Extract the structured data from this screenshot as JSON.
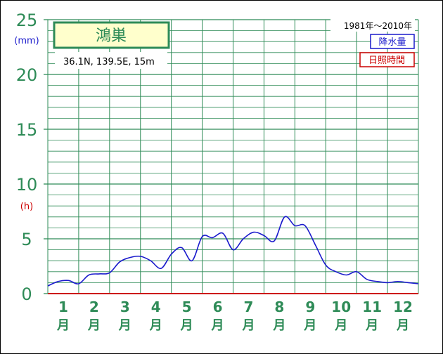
{
  "chart_data": {
    "type": "line",
    "station_name": "鴻巣",
    "station_info": "36.1N,  139.5E,  15m",
    "period": "1981年～2010年",
    "legend": [
      {
        "label": "降水量",
        "color": "#1a1acc"
      },
      {
        "label": "日照時間",
        "color": "#cc0000"
      }
    ],
    "y_unit_top": "(mm)",
    "y_unit_mid": "(h)",
    "y_ticks": [
      "0",
      "5",
      "10",
      "15",
      "20",
      "25"
    ],
    "ylim": [
      0,
      25
    ],
    "months": [
      {
        "num": "1",
        "kanji": "月"
      },
      {
        "num": "2",
        "kanji": "月"
      },
      {
        "num": "3",
        "kanji": "月"
      },
      {
        "num": "4",
        "kanji": "月"
      },
      {
        "num": "5",
        "kanji": "月"
      },
      {
        "num": "6",
        "kanji": "月"
      },
      {
        "num": "7",
        "kanji": "月"
      },
      {
        "num": "8",
        "kanji": "月"
      },
      {
        "num": "9",
        "kanji": "月"
      },
      {
        "num": "10",
        "kanji": "月"
      },
      {
        "num": "11",
        "kanji": "月"
      },
      {
        "num": "12",
        "kanji": "月"
      }
    ],
    "series": [
      {
        "name": "降水量",
        "color": "#1a1acc",
        "x": [
          0,
          0.33,
          0.67,
          1.0,
          1.33,
          1.67,
          2.0,
          2.33,
          2.67,
          3.0,
          3.33,
          3.67,
          4.0,
          4.33,
          4.67,
          5.0,
          5.33,
          5.67,
          6.0,
          6.33,
          6.67,
          7.0,
          7.33,
          7.67,
          8.0,
          8.33,
          8.67,
          9.0,
          9.33,
          9.67,
          10.0,
          10.33,
          10.67,
          11.0,
          11.33,
          11.67,
          12.0
        ],
        "values": [
          0.7,
          1.1,
          1.2,
          0.9,
          1.7,
          1.8,
          1.9,
          2.9,
          3.3,
          3.4,
          3.0,
          2.3,
          3.6,
          4.2,
          3.0,
          5.2,
          5.1,
          5.5,
          4.0,
          5.0,
          5.6,
          5.3,
          4.8,
          7.0,
          6.2,
          6.2,
          4.4,
          2.6,
          2.0,
          1.7,
          2.0,
          1.3,
          1.1,
          1.0,
          1.1,
          1.0,
          0.9
        ]
      },
      {
        "name": "日照時間",
        "color": "#cc0000",
        "x": [
          0,
          12
        ],
        "values": [
          0,
          0
        ]
      }
    ],
    "colors": {
      "grid": "#2e8b57",
      "axis_text": "#2e8b57",
      "title_box_bg": "#ffffcc"
    }
  }
}
